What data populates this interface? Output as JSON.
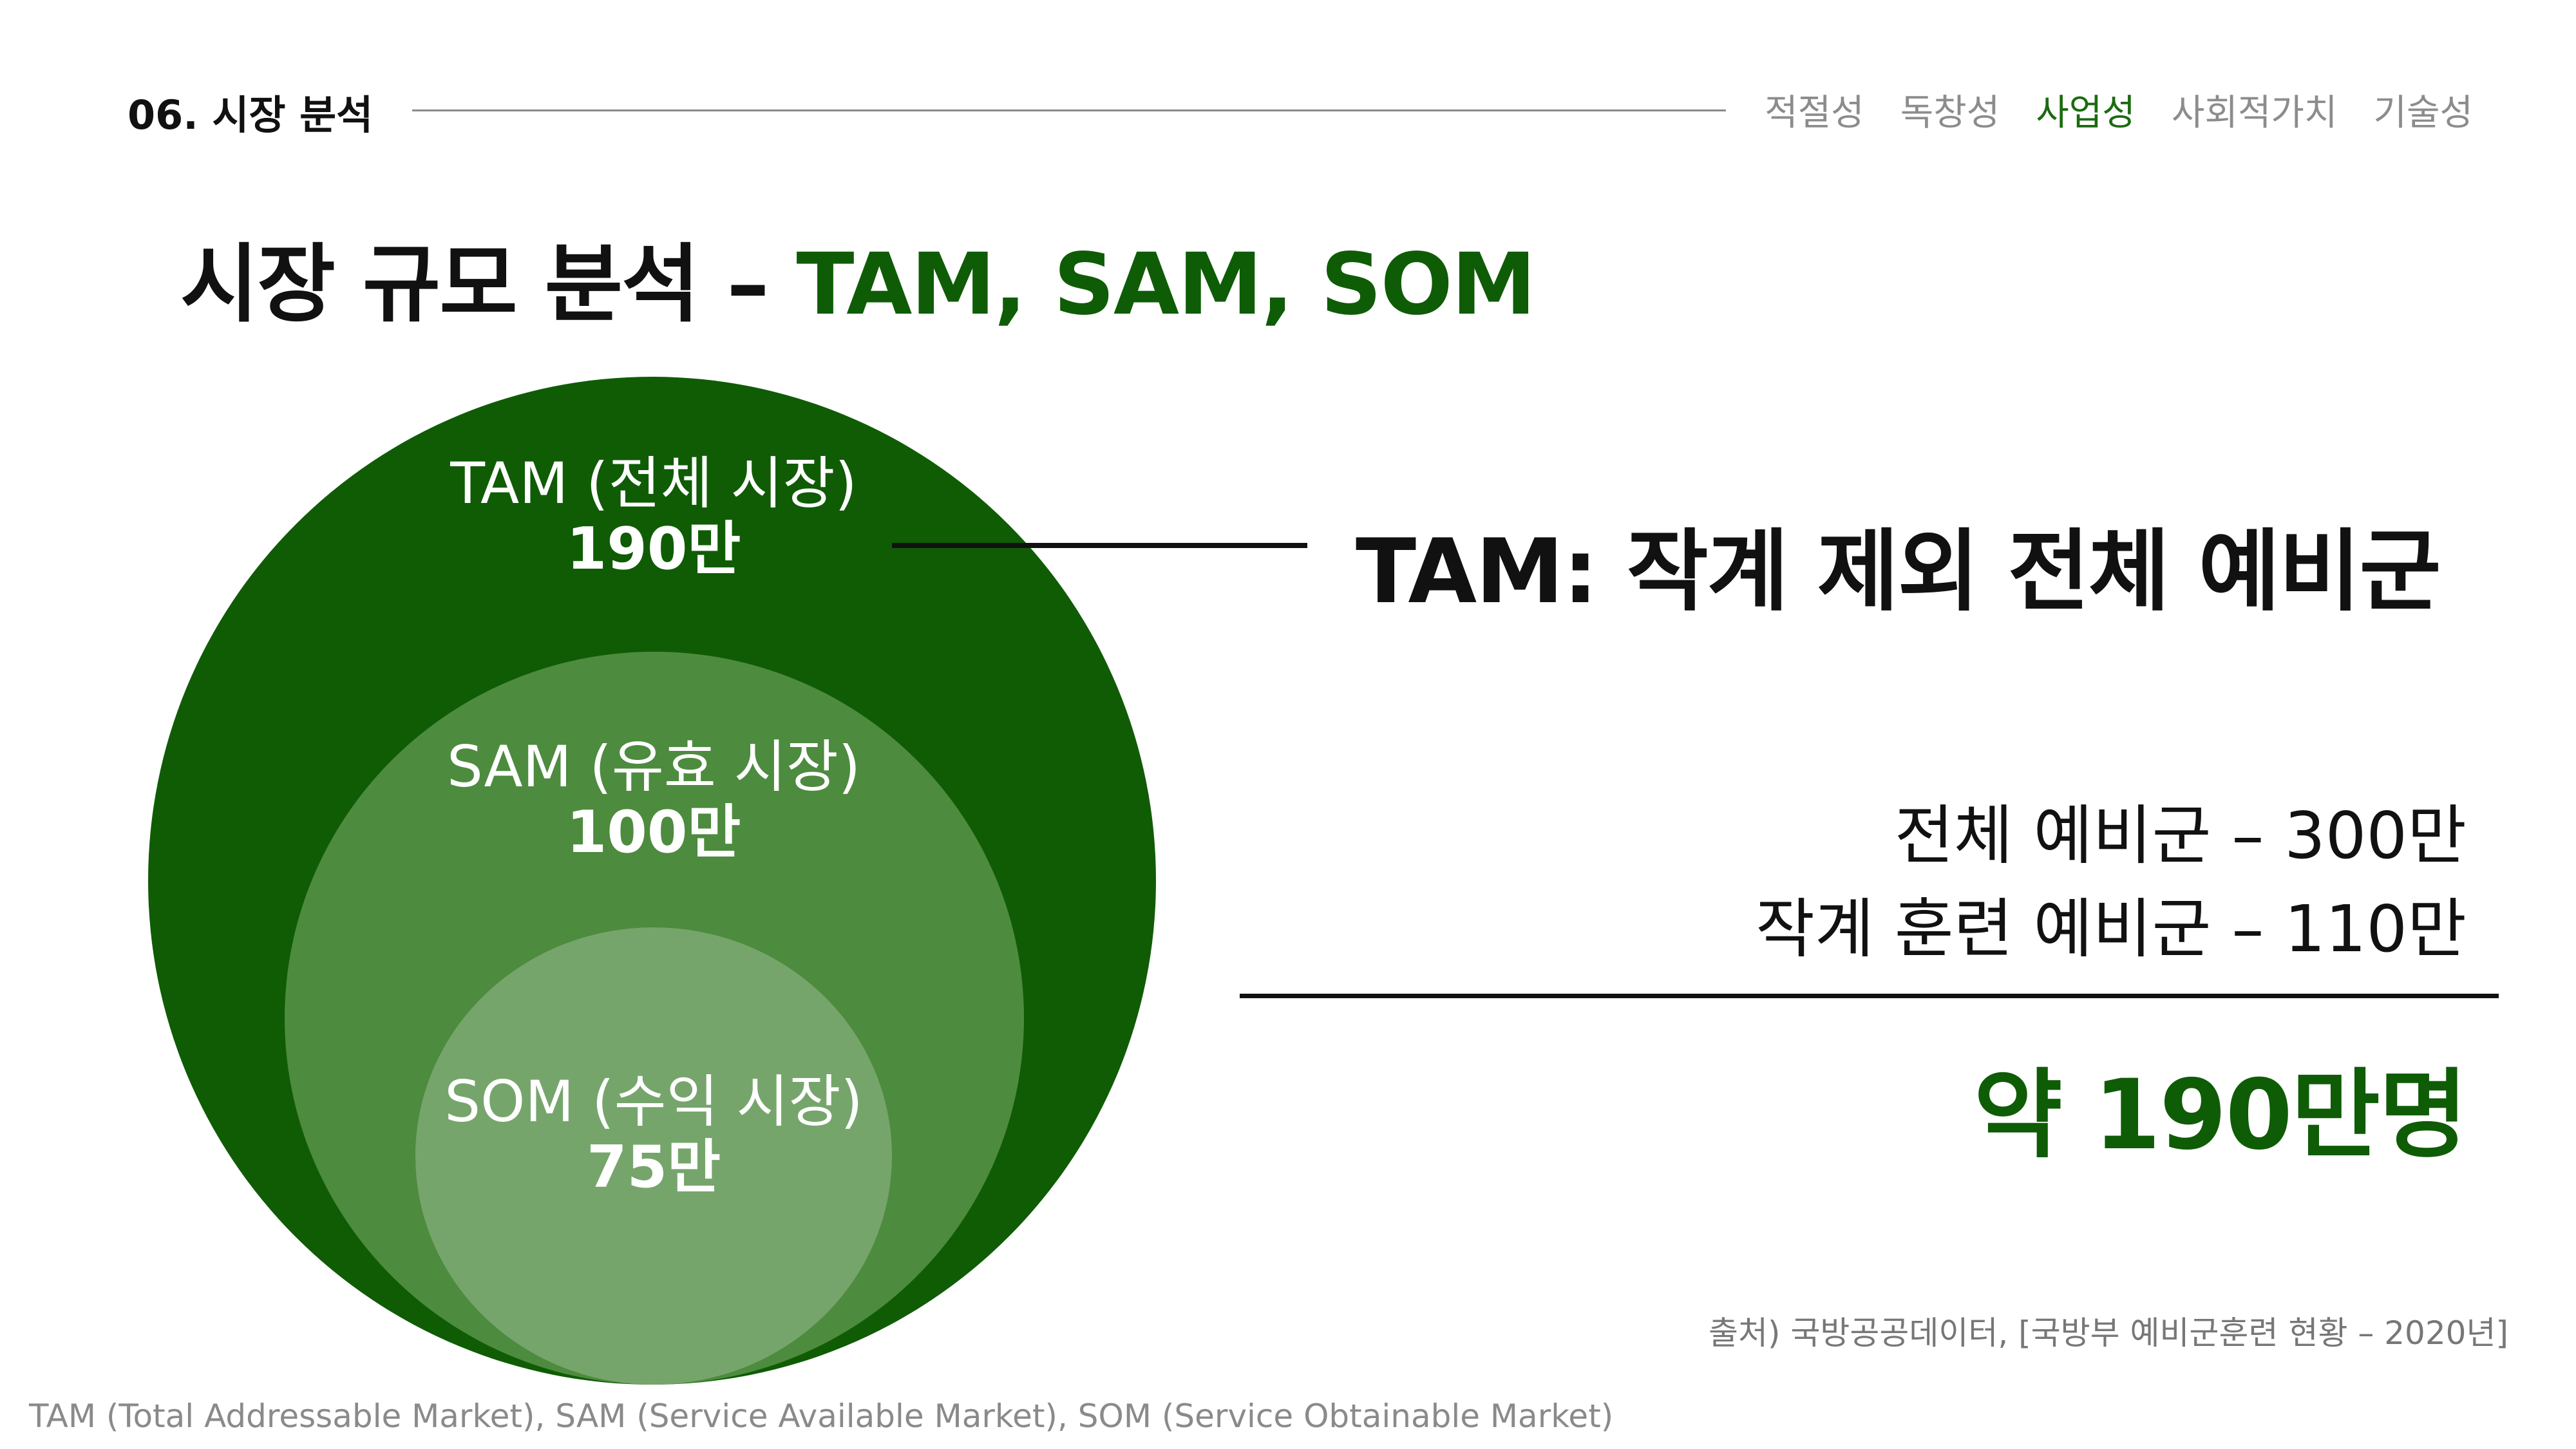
{
  "header": {
    "section_label": "06. 시장 분석",
    "nav": [
      {
        "label": "적절성",
        "active": false
      },
      {
        "label": "독창성",
        "active": false
      },
      {
        "label": "사업성",
        "active": true
      },
      {
        "label": "사회적가치",
        "active": false
      },
      {
        "label": "기술성",
        "active": false
      }
    ]
  },
  "title": {
    "main": "시장 규모 분석 – ",
    "accent": "TAM, SAM, SOM"
  },
  "markets": {
    "tam": {
      "name": "TAM (전체 시장)",
      "value": "190만"
    },
    "sam": {
      "name": "SAM (유효 시장)",
      "value": "100만"
    },
    "som": {
      "name": "SOM (수익 시장)",
      "value": "75만"
    }
  },
  "callout": {
    "heading": "TAM: 작계 제외 전체 예비군",
    "lines": [
      "전체 예비군 – 300만",
      "작계 훈련 예비군 – 110만"
    ],
    "total": "약 190만명"
  },
  "source": "출처) 국방공공데이터, [국방부 예비군훈련 현황 – 2020년]",
  "footnote": "TAM (Total Addressable Market), SAM (Service Available Market), SOM (Service Obtainable Market)",
  "colors": {
    "tam": "#0f5c05",
    "sam": "#4d8b3e",
    "som": "#76a56b",
    "accent": "#0f5c06",
    "nav_active": "#1b6b10"
  }
}
